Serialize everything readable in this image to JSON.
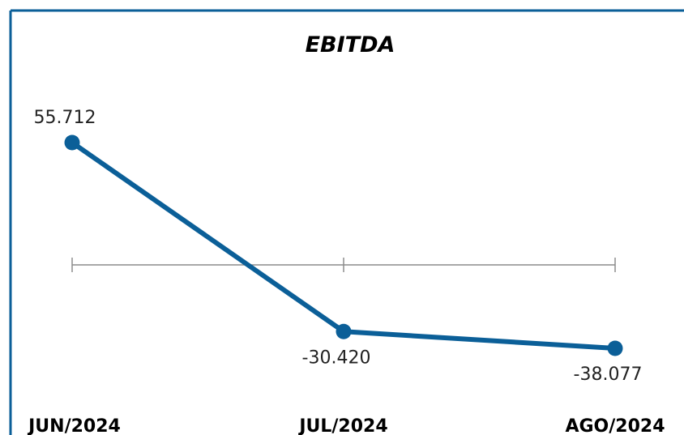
{
  "chart_data": {
    "type": "line",
    "title": "EBITDA",
    "xlabel": "",
    "ylabel": "",
    "categories": [
      "JUN/2024",
      "JUL/2024",
      "AGO/2024"
    ],
    "series": [
      {
        "values": [
          55712,
          -30420,
          -38077
        ],
        "labels": [
          "55.712",
          "-30.420",
          "-38.077"
        ]
      }
    ],
    "ylim": [
      -50000,
      70000
    ],
    "grid": false,
    "legend": "none",
    "colors": {
      "line": "#0B5F98",
      "axis": "#8C8C8C",
      "frame": "#0B5F98"
    }
  }
}
